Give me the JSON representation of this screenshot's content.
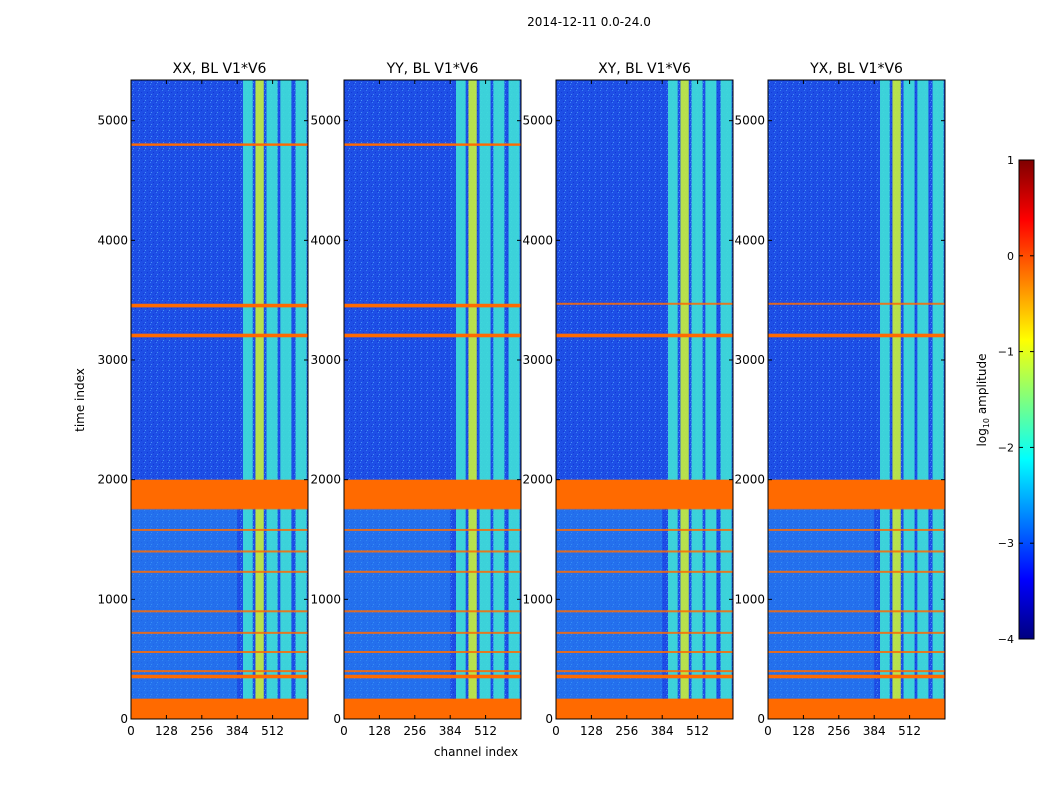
{
  "figure": {
    "suptitle": "2014-12-11 0.0-24.0",
    "xlabel": "channel index",
    "ylabel": "time index"
  },
  "colorbar": {
    "label": "log10 amplitude",
    "label_main": "log",
    "label_sub": "10",
    "label_rest": " amplitude",
    "range": [
      -4,
      1
    ],
    "ticks": [
      1,
      0,
      -1,
      -2,
      -3,
      -4
    ],
    "tick_labels": [
      "1",
      "0",
      "−1",
      "−2",
      "−3",
      "−4"
    ],
    "colormap": "jet",
    "stops": [
      "#00007f",
      "#0000ff",
      "#007fff",
      "#00ffff",
      "#7fff7f",
      "#ffff00",
      "#ff7f00",
      "#ff0000",
      "#7f0000"
    ]
  },
  "colors": {
    "background_low": "#1e4fe6",
    "background_mid": "#2a8cf2",
    "band_high": "#c8f03c",
    "band_mid": "#3fe0d8",
    "flag": "#ff6a00"
  },
  "chart_data": [
    {
      "type": "heatmap",
      "title": "XX, BL V1*V6",
      "xlim": [
        0,
        640
      ],
      "ylim": [
        0,
        5340
      ],
      "xticks": [
        0,
        128,
        256,
        384,
        512
      ],
      "xtick_labels": [
        "0",
        "128",
        "256",
        "384",
        "512"
      ],
      "yticks": [
        0,
        1000,
        2000,
        3000,
        4000,
        5000
      ],
      "ytick_labels": [
        "0",
        "1000",
        "2000",
        "3000",
        "4000",
        "5000"
      ],
      "show_ytick_labels": true,
      "flagged_rows": [
        [
          0,
          170
        ],
        [
          340,
          370
        ],
        [
          1760,
          2000
        ],
        [
          3190,
          3220
        ],
        [
          3440,
          3470
        ],
        [
          4790,
          4810
        ]
      ],
      "thin_lines": [
        400,
        560,
        720,
        900,
        1230,
        1400,
        1580,
        1760
      ],
      "bright_channels": [
        [
          405,
          440
        ],
        [
          450,
          480
        ],
        [
          490,
          530
        ],
        [
          540,
          580
        ],
        [
          595,
          635
        ]
      ],
      "log_amp_background": -2.8,
      "log_amp_bands": -1.2
    },
    {
      "type": "heatmap",
      "title": "YY, BL V1*V6",
      "xlim": [
        0,
        640
      ],
      "ylim": [
        0,
        5340
      ],
      "xticks": [
        0,
        128,
        256,
        384,
        512
      ],
      "xtick_labels": [
        "0",
        "128",
        "256",
        "384",
        "512"
      ],
      "yticks": [
        0,
        1000,
        2000,
        3000,
        4000,
        5000
      ],
      "ytick_labels": [
        "0",
        "1000",
        "2000",
        "3000",
        "4000",
        "5000"
      ],
      "show_ytick_labels": true,
      "flagged_rows": [
        [
          0,
          170
        ],
        [
          340,
          370
        ],
        [
          1760,
          2000
        ],
        [
          3190,
          3220
        ],
        [
          3440,
          3470
        ],
        [
          4790,
          4810
        ]
      ],
      "thin_lines": [
        400,
        560,
        720,
        900,
        1230,
        1400,
        1580,
        1760
      ],
      "bright_channels": [
        [
          405,
          440
        ],
        [
          450,
          480
        ],
        [
          490,
          530
        ],
        [
          540,
          580
        ],
        [
          595,
          635
        ]
      ],
      "log_amp_background": -2.8,
      "log_amp_bands": -1.2
    },
    {
      "type": "heatmap",
      "title": "XY, BL V1*V6",
      "xlim": [
        0,
        640
      ],
      "ylim": [
        0,
        5340
      ],
      "xticks": [
        0,
        128,
        256,
        384,
        512
      ],
      "xtick_labels": [
        "0",
        "128",
        "256",
        "384",
        "512"
      ],
      "yticks": [
        0,
        1000,
        2000,
        3000,
        4000,
        5000
      ],
      "ytick_labels": [
        "0",
        "1000",
        "2000",
        "3000",
        "4000",
        "5000"
      ],
      "show_ytick_labels": true,
      "flagged_rows": [
        [
          0,
          170
        ],
        [
          340,
          370
        ],
        [
          1760,
          2000
        ],
        [
          3190,
          3220
        ]
      ],
      "thin_lines": [
        400,
        560,
        720,
        900,
        1230,
        1400,
        1580,
        1760,
        3470
      ],
      "bright_channels": [
        [
          405,
          440
        ],
        [
          450,
          480
        ],
        [
          490,
          530
        ],
        [
          540,
          580
        ],
        [
          595,
          635
        ]
      ],
      "log_amp_background": -3.0,
      "log_amp_bands": -1.3
    },
    {
      "type": "heatmap",
      "title": "YX, BL V1*V6",
      "xlim": [
        0,
        640
      ],
      "ylim": [
        0,
        5340
      ],
      "xticks": [
        0,
        128,
        256,
        384,
        512
      ],
      "xtick_labels": [
        "0",
        "128",
        "256",
        "384",
        "512"
      ],
      "yticks": [
        0,
        1000,
        2000,
        3000,
        4000,
        5000
      ],
      "ytick_labels": [
        "0",
        "1000",
        "2000",
        "3000",
        "4000",
        "5000"
      ],
      "show_ytick_labels": true,
      "flagged_rows": [
        [
          0,
          170
        ],
        [
          340,
          370
        ],
        [
          1760,
          2000
        ],
        [
          3190,
          3220
        ]
      ],
      "thin_lines": [
        400,
        560,
        720,
        900,
        1230,
        1400,
        1580,
        1760,
        3470
      ],
      "bright_channels": [
        [
          405,
          440
        ],
        [
          450,
          480
        ],
        [
          490,
          530
        ],
        [
          540,
          580
        ],
        [
          595,
          635
        ]
      ],
      "log_amp_background": -3.0,
      "log_amp_bands": -1.3
    }
  ]
}
